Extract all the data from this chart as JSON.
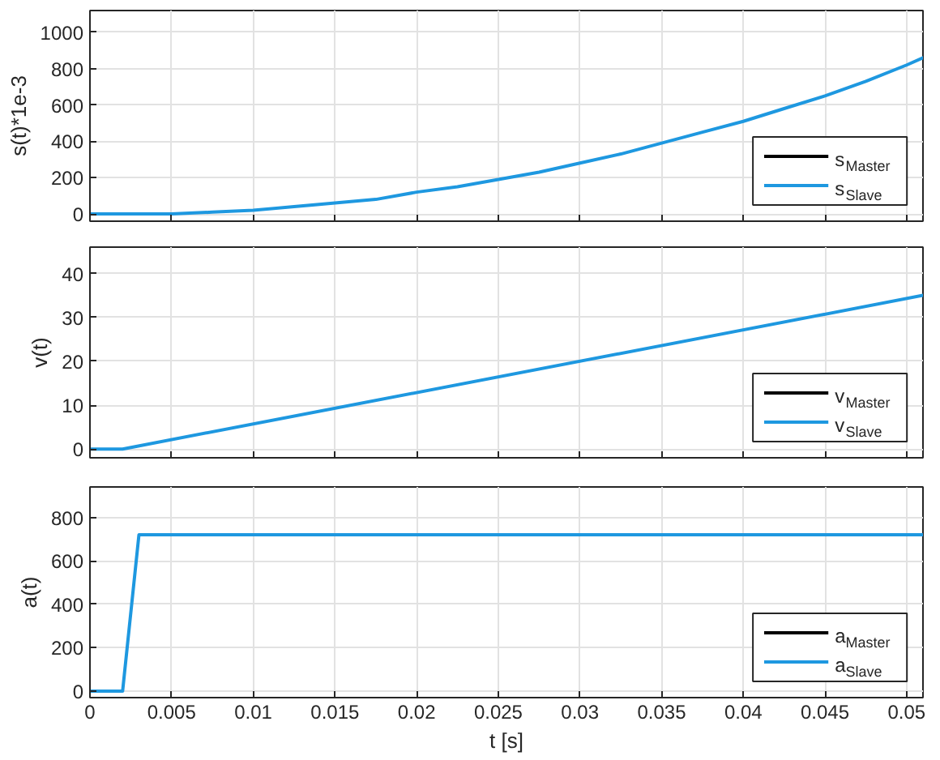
{
  "chart_data": [
    {
      "type": "line",
      "ylabel": "s(t)*1e-3",
      "x": [
        0,
        0.0025,
        0.005,
        0.0075,
        0.01,
        0.0125,
        0.015,
        0.0175,
        0.02,
        0.0225,
        0.025,
        0.0275,
        0.03,
        0.0325,
        0.035,
        0.0375,
        0.04,
        0.0425,
        0.045,
        0.0475,
        0.05,
        0.051
      ],
      "series": [
        {
          "name": "s$_{Master}$",
          "color": "#000000",
          "values": [
            null,
            null,
            null,
            null,
            null,
            null,
            null,
            null,
            null,
            null,
            null,
            null,
            null,
            null,
            null,
            null,
            null,
            null,
            null,
            null,
            null,
            null
          ]
        },
        {
          "name": "s$_{Slave}$",
          "color": "#1e98e0",
          "values": [
            0,
            0,
            0,
            10,
            20,
            40,
            60,
            80,
            120,
            150,
            190,
            230,
            280,
            330,
            390,
            450,
            510,
            580,
            650,
            730,
            820,
            860
          ]
        }
      ],
      "xlim": [
        0,
        0.051
      ],
      "xticks": [
        0,
        0.005,
        0.01,
        0.015,
        0.02,
        0.025,
        0.03,
        0.035,
        0.04,
        0.045,
        0.05
      ],
      "ylim": [
        -40,
        1120
      ],
      "yticks": [
        0,
        200,
        400,
        600,
        800,
        1000
      ],
      "grid": true,
      "legend": "bottom right",
      "tick_labels": "y"
    },
    {
      "type": "line",
      "ylabel": "v(t)",
      "x": [
        0,
        0.002,
        0.051
      ],
      "series": [
        {
          "name": "v$_{Master}$",
          "color": "#000000",
          "values": [
            null,
            null,
            null
          ]
        },
        {
          "name": "v$_{Slave}$",
          "color": "#1e98e0",
          "values": [
            0,
            0,
            35
          ]
        }
      ],
      "xlim": [
        0,
        0.051
      ],
      "xticks": [
        0,
        0.005,
        0.01,
        0.015,
        0.02,
        0.025,
        0.03,
        0.035,
        0.04,
        0.045,
        0.05
      ],
      "ylim": [
        -2,
        46
      ],
      "yticks": [
        0,
        10,
        20,
        30,
        40
      ],
      "grid": true,
      "legend": "bottom right",
      "tick_labels": "y"
    },
    {
      "type": "line",
      "ylabel": "a(t)",
      "xlabel": "t [s]",
      "x": [
        0,
        0.002,
        0.003,
        0.051
      ],
      "series": [
        {
          "name": "a$_{Master}$",
          "color": "#000000",
          "values": [
            null,
            null,
            null,
            null
          ]
        },
        {
          "name": "a$_{Slave}$",
          "color": "#1e98e0",
          "values": [
            0,
            0,
            720,
            720
          ]
        }
      ],
      "xlim": [
        0,
        0.051
      ],
      "xticks": [
        0,
        0.005,
        0.01,
        0.015,
        0.02,
        0.025,
        0.03,
        0.035,
        0.04,
        0.045,
        0.05
      ],
      "ylim": [
        -30,
        940
      ],
      "yticks": [
        0,
        200,
        400,
        600,
        800
      ],
      "grid": true,
      "legend": "bottom right"
    }
  ]
}
